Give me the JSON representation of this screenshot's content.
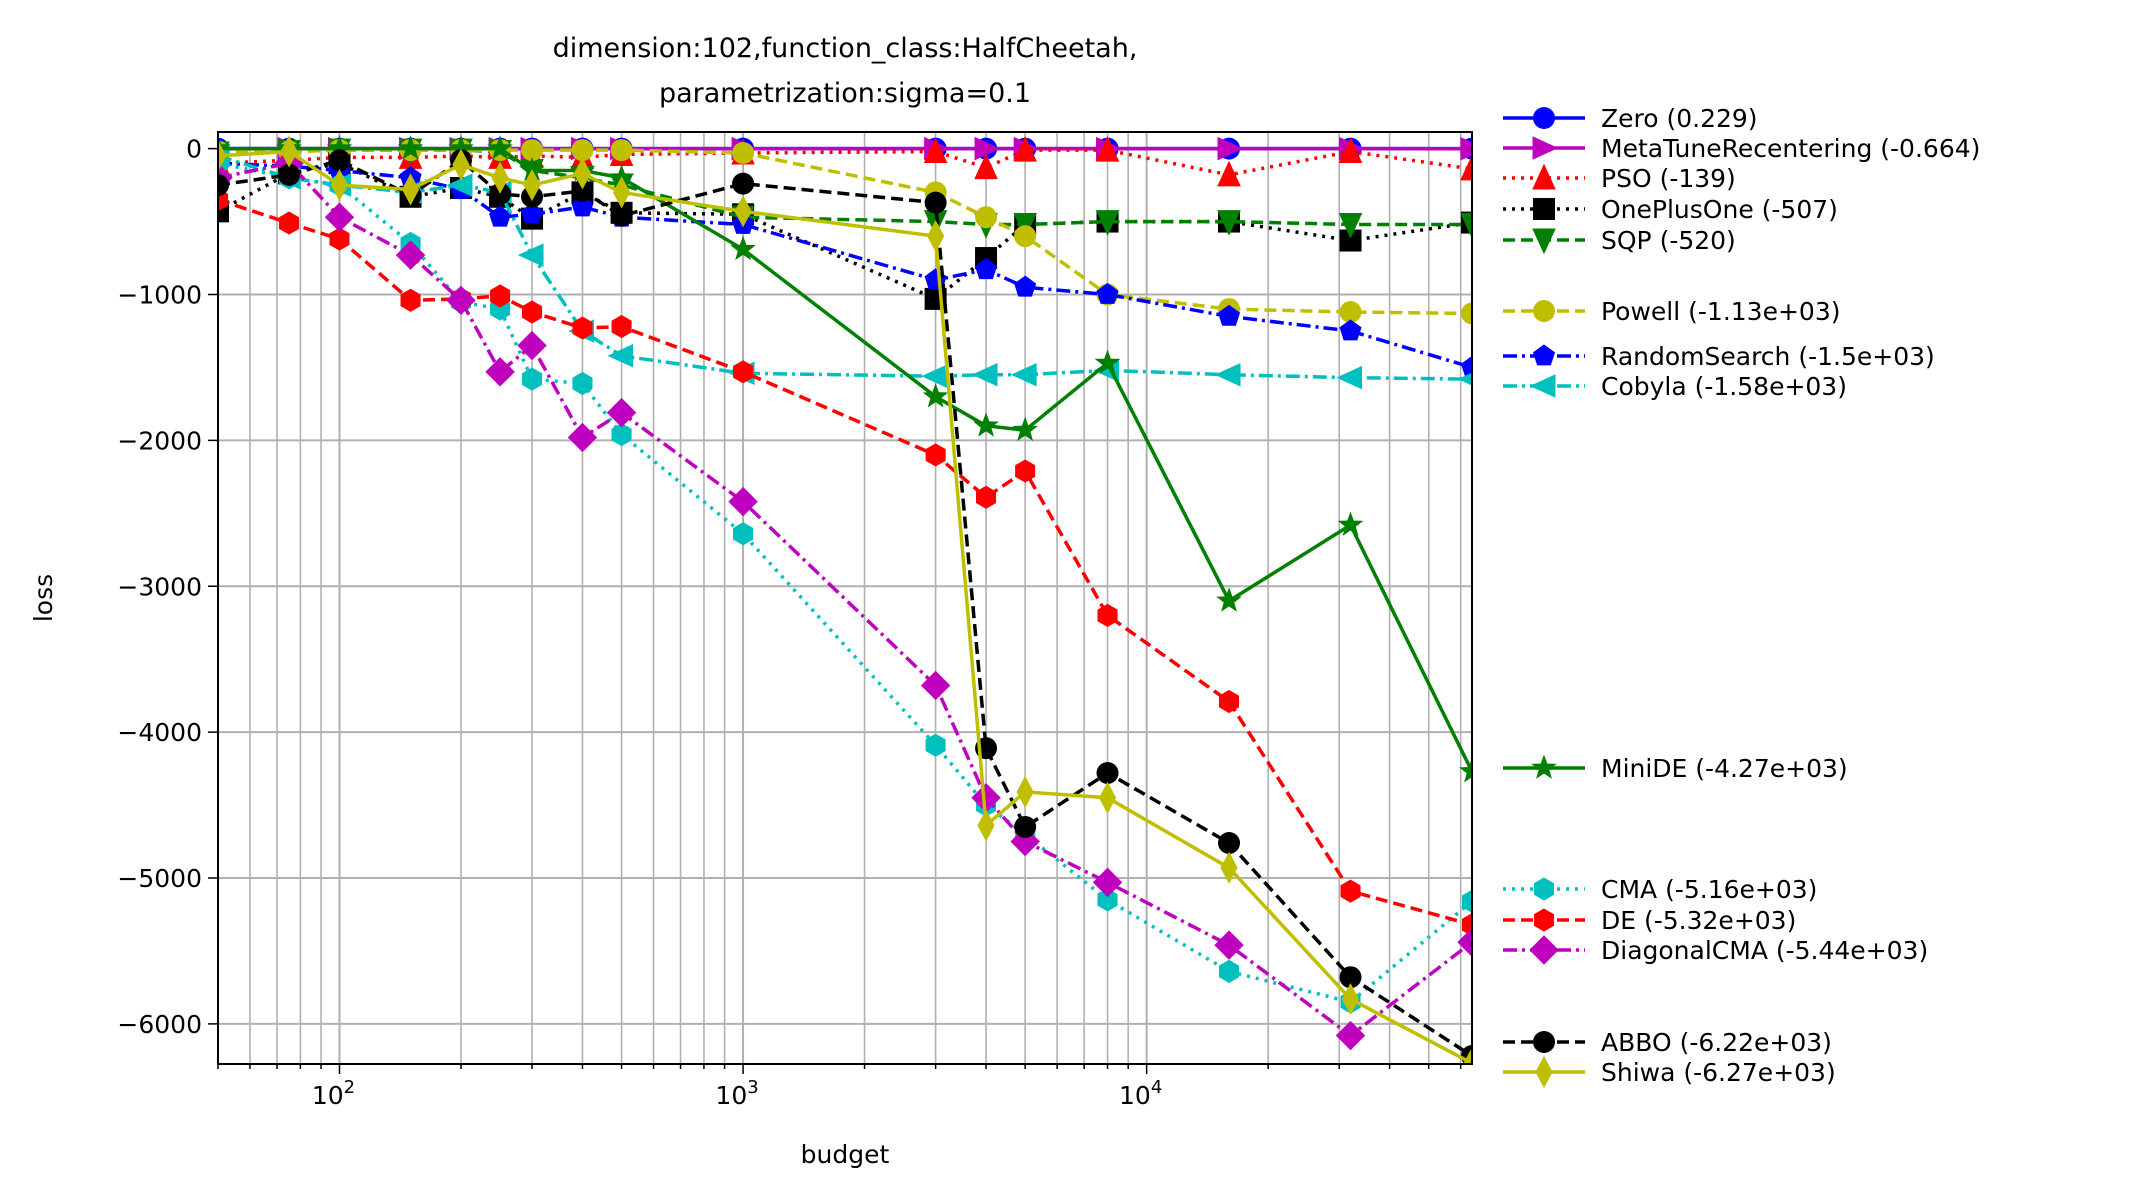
{
  "chart_data": {
    "type": "line",
    "title": [
      "dimension:102,function_class:HalfCheetah,",
      "parametrization:sigma=0.1"
    ],
    "xlabel": "budget",
    "ylabel": "loss",
    "xscale": "log",
    "xlim": [
      50,
      64000
    ],
    "ylim": [
      -6275,
      114
    ],
    "grid": "on (major and minor)",
    "legend_placement": "outside right",
    "xticks": [
      {
        "value": 100,
        "base": "10",
        "exp": "2"
      },
      {
        "value": 1000,
        "base": "10",
        "exp": "3"
      },
      {
        "value": 10000,
        "base": "10",
        "exp": "4"
      }
    ],
    "yticks": [
      {
        "value": 0,
        "label": "0"
      },
      {
        "value": -1000,
        "label": "−1000"
      },
      {
        "value": -2000,
        "label": "−2000"
      },
      {
        "value": -3000,
        "label": "−3000"
      },
      {
        "value": -4000,
        "label": "−4000"
      },
      {
        "value": -5000,
        "label": "−5000"
      },
      {
        "value": -6000,
        "label": "−6000"
      }
    ],
    "x": [
      50,
      75,
      100,
      150,
      200,
      250,
      300,
      400,
      500,
      1000,
      3000,
      4000,
      5000,
      8000,
      16000,
      32000,
      64000
    ],
    "series": [
      {
        "name": "Zero",
        "legend": "Zero (0.229)",
        "color": "#0000ff",
        "marker": "circle",
        "linestyle": "solid",
        "values": [
          0,
          0,
          0,
          0,
          0,
          0,
          0,
          0,
          0,
          0,
          0,
          0,
          0,
          0,
          0,
          0,
          0.229
        ]
      },
      {
        "name": "MetaTuneRecentering",
        "legend": "MetaTuneRecentering (-0.664)",
        "color": "#bf00bf",
        "marker": "triangle-right",
        "linestyle": "solid",
        "values": [
          0,
          0,
          0,
          0,
          0,
          0,
          0,
          0,
          0,
          0,
          0,
          0,
          0,
          0,
          0,
          0,
          -0.664
        ]
      },
      {
        "name": "PSO",
        "legend": "PSO (-139)",
        "color": "#ff0000",
        "marker": "triangle-up",
        "linestyle": "dotted",
        "values": [
          -100,
          -80,
          -60,
          -60,
          -50,
          -60,
          -50,
          -60,
          -40,
          -30,
          -20,
          -130,
          -10,
          -10,
          -180,
          -20,
          -139
        ]
      },
      {
        "name": "OnePlusOne",
        "legend": "OnePlusOne (-507)",
        "color": "#000000",
        "marker": "square",
        "linestyle": "dotted",
        "values": [
          -430,
          -170,
          -100,
          -330,
          -270,
          -330,
          -480,
          -300,
          -440,
          -450,
          -1030,
          -750,
          -520,
          -500,
          -500,
          -630,
          -507
        ]
      },
      {
        "name": "SQP",
        "legend": "SQP (-520)",
        "color": "#008000",
        "marker": "triangle-down",
        "linestyle": "dashed",
        "values": [
          -30,
          -20,
          -10,
          -10,
          -10,
          -20,
          -150,
          -200,
          -250,
          -470,
          -500,
          -520,
          -520,
          -500,
          -500,
          -520,
          -520
        ]
      },
      {
        "name": "Powell",
        "legend": "Powell (-1.13e+03)",
        "color": "#bfbf00",
        "marker": "circle",
        "linestyle": "dashed",
        "values": [
          -20,
          -20,
          -10,
          -10,
          -10,
          -10,
          -10,
          -10,
          -10,
          -30,
          -300,
          -470,
          -600,
          -1000,
          -1100,
          -1120,
          -1130
        ]
      },
      {
        "name": "RandomSearch",
        "legend": "RandomSearch (-1.5e+03)",
        "color": "#0000ff",
        "marker": "pentagon",
        "linestyle": "dashdot",
        "values": [
          -100,
          -120,
          -150,
          -200,
          -280,
          -470,
          -450,
          -400,
          -470,
          -520,
          -900,
          -830,
          -950,
          -1000,
          -1150,
          -1250,
          -1500
        ]
      },
      {
        "name": "Cobyla",
        "legend": "Cobyla (-1.58e+03)",
        "color": "#00bfbf",
        "marker": "triangle-left",
        "linestyle": "dashdot",
        "values": [
          -50,
          -200,
          -250,
          -300,
          -250,
          -300,
          -730,
          -1250,
          -1420,
          -1540,
          -1560,
          -1550,
          -1550,
          -1520,
          -1550,
          -1570,
          -1580
        ]
      },
      {
        "name": "MiniDE",
        "legend": "MiniDE (-4.27e+03)",
        "color": "#008000",
        "marker": "star",
        "linestyle": "solid",
        "values": [
          0,
          0,
          0,
          0,
          0,
          0,
          -150,
          -150,
          -200,
          -690,
          -1700,
          -1900,
          -1930,
          -1470,
          -3100,
          -2580,
          -4270
        ]
      },
      {
        "name": "CMA",
        "legend": "CMA (-5.16e+03)",
        "color": "#00bfbf",
        "marker": "hexagon",
        "linestyle": "dotted",
        "values": [
          -100,
          -200,
          -250,
          -650,
          -1050,
          -1100,
          -1580,
          -1610,
          -1960,
          -2640,
          -4090,
          -4500,
          -4700,
          -5150,
          -5640,
          -5850,
          -5160
        ]
      },
      {
        "name": "DE",
        "legend": "DE (-5.32e+03)",
        "color": "#ff0000",
        "marker": "hexagon",
        "linestyle": "dashed",
        "values": [
          -350,
          -510,
          -620,
          -1040,
          -1030,
          -1010,
          -1120,
          -1230,
          -1220,
          -1530,
          -2100,
          -2390,
          -2210,
          -3200,
          -3790,
          -5090,
          -5320
        ]
      },
      {
        "name": "DiagonalCMA",
        "legend": "DiagonalCMA (-5.44e+03)",
        "color": "#bf00bf",
        "marker": "diamond",
        "linestyle": "dashdot",
        "values": [
          -200,
          -100,
          -470,
          -730,
          -1040,
          -1530,
          -1350,
          -1980,
          -1810,
          -2420,
          -3680,
          -4450,
          -4750,
          -5030,
          -5460,
          -6080,
          -5440
        ]
      },
      {
        "name": "ABBO",
        "legend": "ABBO (-6.22e+03)",
        "color": "#000000",
        "marker": "circle",
        "linestyle": "dashed",
        "values": [
          -250,
          -180,
          -80,
          -320,
          -80,
          -310,
          -330,
          -290,
          -460,
          -240,
          -370,
          -4110,
          -4650,
          -4280,
          -4760,
          -5680,
          -6220
        ]
      },
      {
        "name": "Shiwa",
        "legend": "Shiwa (-6.27e+03)",
        "color": "#bfbf00",
        "marker": "thin-diamond",
        "linestyle": "solid",
        "values": [
          -50,
          -20,
          -250,
          -280,
          -110,
          -200,
          -250,
          -170,
          -300,
          -430,
          -600,
          -4640,
          -4410,
          -4450,
          -4930,
          -5830,
          -6270
        ]
      }
    ]
  }
}
